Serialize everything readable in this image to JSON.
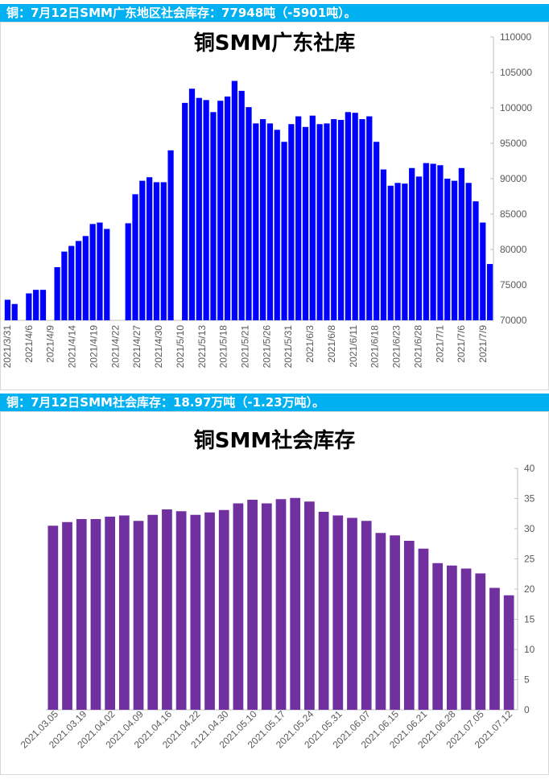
{
  "banner_top": "铜：7月12日SMM广东地区社会库存：77948吨（-5901吨）。",
  "banner_bottom": "铜：7月12日SMM社会库存：18.97万吨（-1.23万吨）。",
  "colors": {
    "banner_bg": "#00b0f0",
    "chart1_bar": "#0000ff",
    "chart2_bar": "#7030a0"
  },
  "chart_data": [
    {
      "type": "bar",
      "title": "铜SMM广东社库",
      "ylim": [
        70000,
        110000
      ],
      "yticks": [
        70000,
        75000,
        80000,
        85000,
        90000,
        95000,
        100000,
        105000,
        110000
      ],
      "y_axis_side": "right",
      "x_tick_labels": [
        "2021/3/31",
        "2021/4/6",
        "2021/4/9",
        "2021/4/14",
        "2021/4/19",
        "2021/4/22",
        "2021/4/27",
        "2021/4/30",
        "2021/5/10",
        "2021/5/13",
        "2021/5/18",
        "2021/5/21",
        "2021/5/26",
        "2021/5/31",
        "2021/6/3",
        "2021/6/8",
        "2021/6/11",
        "2021/6/18",
        "2021/6/23",
        "2021/6/28",
        "2021/7/1",
        "2021/7/6",
        "2021/7/9"
      ],
      "values": [
        72900,
        72300,
        null,
        73800,
        74300,
        74300,
        null,
        77500,
        79700,
        80500,
        81200,
        81900,
        83600,
        83800,
        82900,
        null,
        null,
        83700,
        87800,
        89700,
        90200,
        89500,
        89500,
        94000,
        null,
        100700,
        102700,
        101400,
        101100,
        99400,
        101000,
        101600,
        103800,
        102400,
        100100,
        97800,
        98400,
        97800,
        96900,
        95200,
        97700,
        98800,
        97300,
        98900,
        97700,
        97800,
        98400,
        98300,
        99400,
        99300,
        98400,
        98800,
        95200,
        91300,
        89000,
        89400,
        89300,
        91500,
        90300,
        92200,
        92100,
        91900,
        90000,
        89700,
        91500,
        89400,
        86800,
        83800,
        77948
      ],
      "grid": false,
      "legend": "none"
    },
    {
      "type": "bar",
      "title": "铜SMM社会库存",
      "ylim": [
        0,
        40
      ],
      "yticks": [
        0,
        5,
        10,
        15,
        20,
        25,
        30,
        35,
        40
      ],
      "y_axis_side": "right",
      "x_tick_labels": [
        "2021.03.05",
        "2021.03.19",
        "2021.04.02",
        "2021.04.09",
        "2021.04.16",
        "2021.04.22",
        "2121.04.30",
        "2021.05.10",
        "2021.05.17",
        "2021.05.24",
        "2021.05.31",
        "2021.06.07",
        "2021.06.15",
        "2021.06.21",
        "2021.06.28",
        "2021.07.05",
        "2021.07.12"
      ],
      "values": [
        30.5,
        31.1,
        31.6,
        31.6,
        32.0,
        32.2,
        31.3,
        32.3,
        33.2,
        32.9,
        32.3,
        32.7,
        33.1,
        34.2,
        34.8,
        34.2,
        34.9,
        35.1,
        34.5,
        32.8,
        32.2,
        31.8,
        31.3,
        29.3,
        28.9,
        28.0,
        26.7,
        24.3,
        23.9,
        23.4,
        22.6,
        20.2,
        18.97
      ],
      "grid": false,
      "legend": "none"
    }
  ]
}
